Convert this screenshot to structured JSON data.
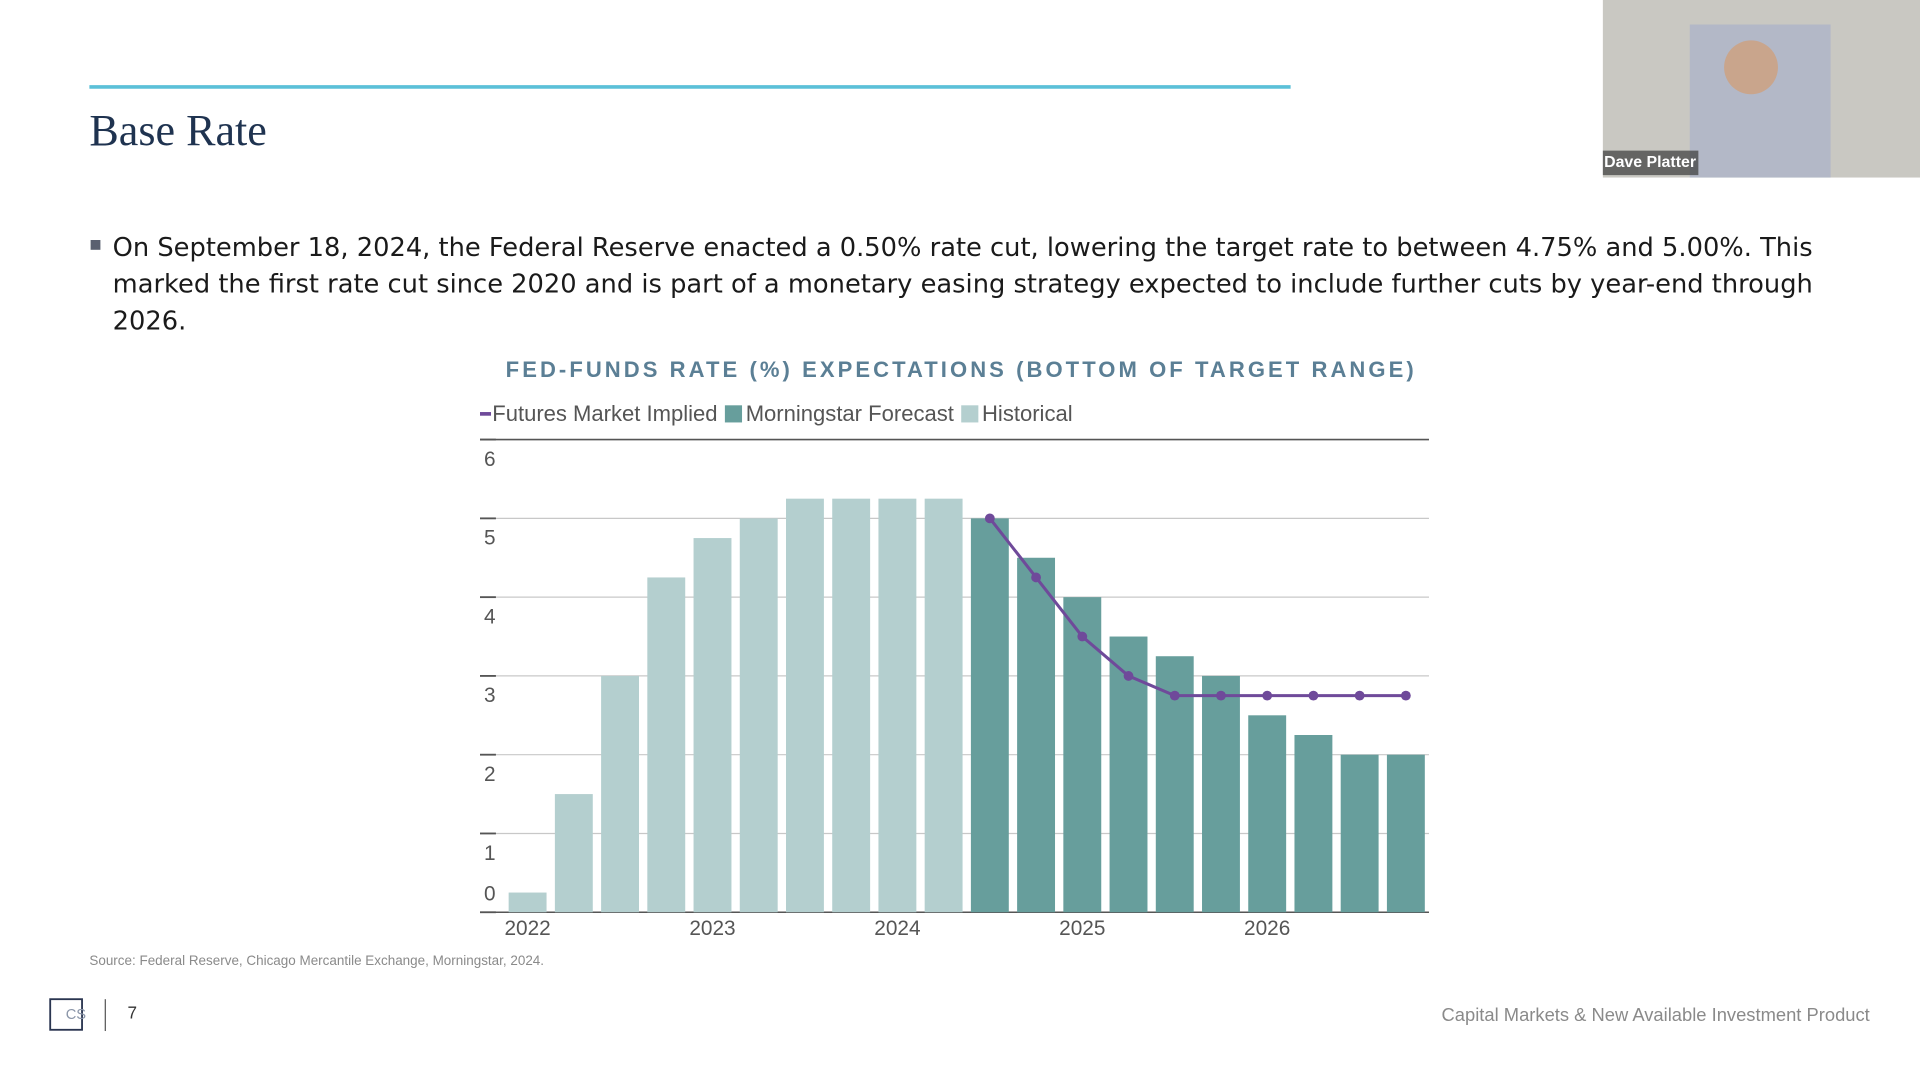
{
  "header": {
    "title": "Base Rate"
  },
  "bullets": [
    "On September 18, 2024, the Federal Reserve enacted a 0.50% rate cut, lowering the target rate to between 4.75% and 5.00%. This marked the first rate cut since 2020 and is part of a monetary easing strategy expected to include further cuts by year-end through 2026."
  ],
  "chart_data": {
    "type": "bar",
    "title": "FED-FUNDS RATE (%) EXPECTATIONS (BOTTOM OF TARGET RANGE)",
    "categories": [
      "2022",
      null,
      null,
      null,
      "2023",
      null,
      null,
      null,
      "2024",
      null,
      null,
      null,
      "2025",
      null,
      null,
      null,
      "2026",
      null,
      null,
      null
    ],
    "series": [
      {
        "name": "Futures Market Implied",
        "type": "line",
        "color": "#6f4a9a",
        "values": [
          null,
          null,
          null,
          null,
          null,
          null,
          null,
          null,
          null,
          null,
          5.0,
          4.25,
          3.5,
          3.0,
          2.75,
          2.75,
          2.75,
          2.75,
          2.75,
          2.75
        ]
      },
      {
        "name": "Morningstar Forecast",
        "type": "bar",
        "color": "#679e9c",
        "values": [
          null,
          null,
          null,
          null,
          null,
          null,
          null,
          null,
          null,
          null,
          5.0,
          4.5,
          4.0,
          3.5,
          3.25,
          3.0,
          2.5,
          2.25,
          2.0,
          2.0
        ]
      },
      {
        "name": "Historical",
        "type": "bar",
        "color": "#b4cfcf",
        "values": [
          0.25,
          1.5,
          3.0,
          4.25,
          4.75,
          5.0,
          5.25,
          5.25,
          5.25,
          5.25,
          null,
          null,
          null,
          null,
          null,
          null,
          null,
          null,
          null,
          null
        ]
      }
    ],
    "ylim": [
      0,
      6
    ],
    "yticks": [
      0,
      1,
      2,
      3,
      4,
      5,
      6
    ],
    "grid": true
  },
  "source": "Source: Federal Reserve, Chicago Mercantile Exchange, Morningstar, 2024.",
  "footer": {
    "logo": "CS",
    "page": "7",
    "text": "Capital Markets & New Available Investment Product"
  },
  "video": {
    "name": "Dave Platter"
  }
}
